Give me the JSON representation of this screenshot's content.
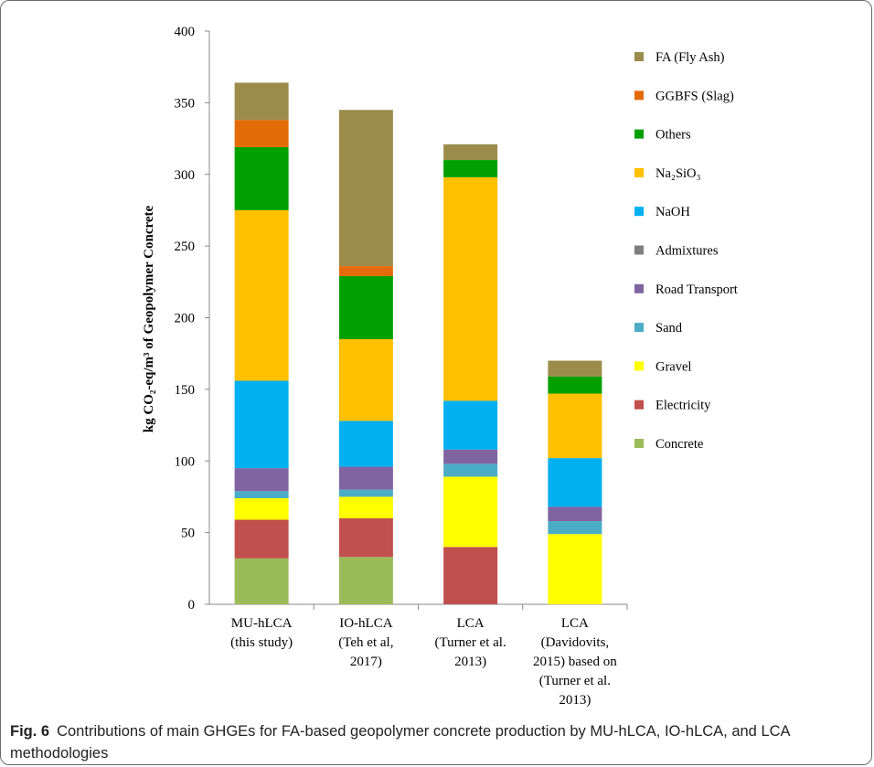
{
  "chart_data": {
    "type": "bar",
    "stacked": true,
    "ylabel": "kg CO₂-eq/m³ of Geopolymer Concrete",
    "ylim": [
      0,
      400
    ],
    "yticks": [
      0,
      50,
      100,
      150,
      200,
      250,
      300,
      350,
      400
    ],
    "grid": false,
    "legend_position": "right",
    "categories": [
      [
        "MU-hLCA",
        "(this study)"
      ],
      [
        "IO-hLCA",
        "(Teh et al,",
        "2017)"
      ],
      [
        "LCA",
        "(Turner et al.",
        "2013)"
      ],
      [
        "LCA",
        "(Davidovits,",
        "2015) based on",
        "(Turner et al.",
        "2013)"
      ]
    ],
    "series": [
      {
        "name": "Concrete",
        "color": "#9bbb59",
        "values": [
          32,
          33,
          0,
          0
        ]
      },
      {
        "name": "Electricity",
        "color": "#c0504d",
        "values": [
          27,
          27,
          40,
          0
        ]
      },
      {
        "name": "Gravel",
        "color": "#ffff00",
        "values": [
          15,
          15,
          49,
          49
        ]
      },
      {
        "name": "Sand",
        "color": "#4bacc6",
        "values": [
          5,
          5,
          9,
          9
        ]
      },
      {
        "name": "Road Transport",
        "color": "#8064a2",
        "values": [
          16,
          16,
          10,
          10
        ]
      },
      {
        "name": "Admixtures",
        "color": "#7f7f7f",
        "values": [
          0,
          0,
          0,
          0
        ]
      },
      {
        "name": "NaOH",
        "color": "#00b0f0",
        "values": [
          61,
          32,
          34,
          34
        ]
      },
      {
        "name": "Na₂SiO₃",
        "color": "#ffc000",
        "values": [
          119,
          57,
          156,
          45
        ]
      },
      {
        "name": "Others",
        "color": "#00a000",
        "values": [
          44,
          44,
          12,
          12
        ]
      },
      {
        "name": "GGBFS (Slag)",
        "color": "#e36c09",
        "values": [
          19,
          7,
          0,
          0
        ]
      },
      {
        "name": "FA (Fly Ash)",
        "color": "#9c8c4c",
        "values": [
          26,
          109,
          11,
          11
        ]
      }
    ],
    "legend_order": [
      "FA (Fly Ash)",
      "GGBFS (Slag)",
      "Others",
      "Na₂SiO₃",
      "NaOH",
      "Admixtures",
      "Road Transport",
      "Sand",
      "Gravel",
      "Electricity",
      "Concrete"
    ]
  },
  "caption": {
    "label": "Fig. 6",
    "text": "Contributions of main GHGEs for FA-based geopolymer concrete production by MU-hLCA, IO-hLCA, and LCA methodologies"
  }
}
